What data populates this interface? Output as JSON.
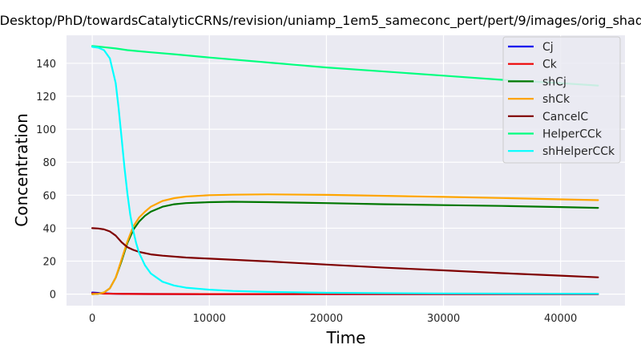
{
  "chart_data": {
    "type": "line",
    "title": "ajiv/Desktop/PhD/towardsCatalyticCRNs/revision/uniamp_1em5_sameconc_pert/pert/9/images/orig_shadow_",
    "xlabel": "Time",
    "ylabel": "Concentration",
    "xlim": [
      -2200,
      45500
    ],
    "ylim": [
      -7,
      157
    ],
    "xticks": [
      0,
      10000,
      20000,
      30000,
      40000
    ],
    "yticks": [
      0,
      20,
      40,
      60,
      80,
      100,
      120,
      140
    ],
    "grid": true,
    "legend_position": "top-right",
    "background_color": "#eaeaf2",
    "series": [
      {
        "name": "Cj",
        "color": "#0000ee",
        "x": [
          0,
          1000,
          2000,
          3000,
          5000,
          10000,
          20000,
          30000,
          43200
        ],
        "y": [
          1.0,
          0.5,
          0.2,
          0.1,
          0.05,
          0.02,
          0.01,
          0.01,
          0.01
        ]
      },
      {
        "name": "Ck",
        "color": "#ee0000",
        "x": [
          0,
          1000,
          2000,
          3000,
          5000,
          10000,
          20000,
          30000,
          43200
        ],
        "y": [
          0.5,
          0.3,
          0.2,
          0.1,
          0.05,
          0.02,
          0.01,
          0.01,
          0.01
        ]
      },
      {
        "name": "shCj",
        "color": "#007700",
        "x": [
          0,
          500,
          1000,
          1500,
          2000,
          2500,
          3000,
          3500,
          4000,
          4500,
          5000,
          6000,
          7000,
          8000,
          10000,
          12000,
          15000,
          20000,
          25000,
          30000,
          35000,
          40000,
          43200
        ],
        "y": [
          0,
          0.2,
          1.0,
          3.5,
          10,
          20,
          31,
          39,
          44,
          47.5,
          50,
          53,
          54.5,
          55.2,
          55.8,
          56,
          55.8,
          55.2,
          54.5,
          54,
          53.5,
          52.8,
          52.3
        ]
      },
      {
        "name": "shCk",
        "color": "#ffa500",
        "x": [
          0,
          500,
          1000,
          1500,
          2000,
          2500,
          3000,
          3500,
          4000,
          4500,
          5000,
          6000,
          7000,
          8000,
          10000,
          12000,
          15000,
          20000,
          25000,
          30000,
          35000,
          40000,
          43200
        ],
        "y": [
          0,
          0.2,
          1.0,
          3.5,
          10,
          21,
          32,
          41,
          46.5,
          50,
          53,
          56.5,
          58.2,
          59.2,
          60,
          60.3,
          60.5,
          60.2,
          59.6,
          59,
          58.3,
          57.5,
          57
        ]
      },
      {
        "name": "CancelC",
        "color": "#7f0000",
        "x": [
          0,
          500,
          1000,
          1500,
          2000,
          2500,
          3000,
          3500,
          4000,
          5000,
          6000,
          8000,
          10000,
          15000,
          20000,
          25000,
          30000,
          35000,
          40000,
          43200
        ],
        "y": [
          40,
          39.8,
          39.3,
          38,
          35.5,
          31.5,
          28.5,
          26.8,
          25.6,
          24.1,
          23.3,
          22.2,
          21.5,
          19.8,
          17.9,
          16,
          14.4,
          12.7,
          11.2,
          10.2
        ]
      },
      {
        "name": "HelperCCk",
        "color": "#00ff7f",
        "x": [
          0,
          1000,
          2000,
          3000,
          4000,
          5000,
          7000,
          10000,
          15000,
          20000,
          25000,
          30000,
          35000,
          40000,
          43200
        ],
        "y": [
          150.5,
          149.8,
          149,
          148,
          147.3,
          146.7,
          145.5,
          143.5,
          140.5,
          137.5,
          135,
          132.5,
          130,
          128,
          126.5
        ]
      },
      {
        "name": "shHelperCCk",
        "color": "#00ffff",
        "x": [
          0,
          500,
          1000,
          1500,
          2000,
          2250,
          2500,
          2750,
          3000,
          3250,
          3500,
          3750,
          4000,
          4500,
          5000,
          6000,
          7000,
          8000,
          10000,
          12000,
          15000,
          20000,
          30000,
          43200
        ],
        "y": [
          150,
          149.5,
          148,
          143,
          128,
          113,
          95,
          77,
          61,
          48,
          38.5,
          31,
          25,
          17.5,
          12.5,
          7.5,
          5.2,
          3.9,
          2.7,
          1.9,
          1.3,
          0.8,
          0.4,
          0.2
        ]
      }
    ]
  }
}
